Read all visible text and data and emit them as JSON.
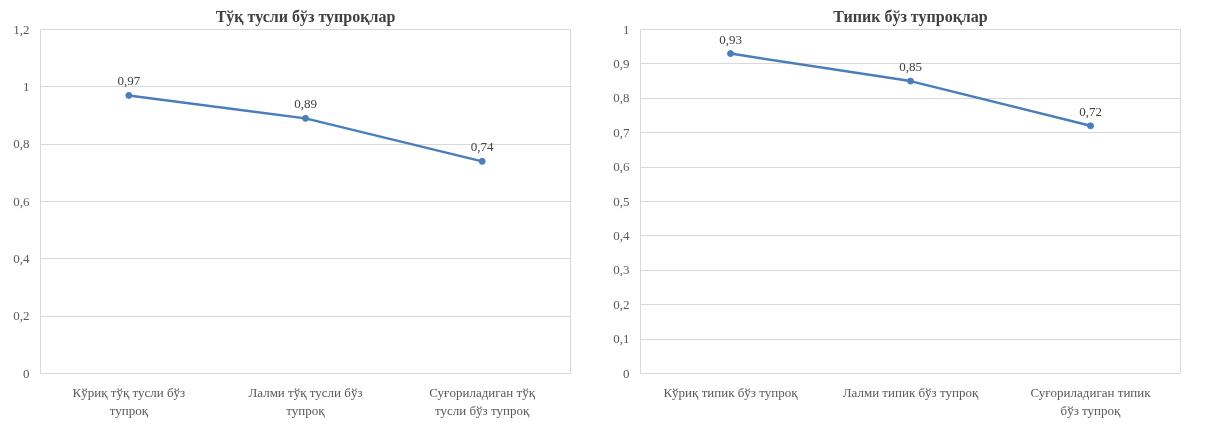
{
  "chart_data": [
    {
      "type": "line",
      "title": "Тўқ тусли бўз тупроқлар",
      "categories": [
        "Кўриқ тўқ тусли бўз тупроқ",
        "Лалми тўқ тусли бўз тупроқ",
        "Суғориладиган тўқ тусли бўз тупроқ"
      ],
      "series": [
        {
          "color": "#4a7ebb",
          "values": [
            0.97,
            0.89,
            0.74
          ],
          "value_labels": [
            "0,97",
            "0,89",
            "0,74"
          ]
        }
      ],
      "ylim": [
        0,
        1.2
      ],
      "yticks": [
        0,
        {
          "value": 0.2,
          "label": "0,2"
        },
        {
          "value": 0.4,
          "label": "0,4"
        },
        {
          "value": 0.6,
          "label": "0,6"
        },
        {
          "value": 0.8,
          "label": "0,8"
        },
        1,
        {
          "value": 1.2,
          "label": "1,2"
        }
      ],
      "grid": "y",
      "marker": "circle",
      "line_style": "solid"
    },
    {
      "type": "line",
      "title": "Типик бўз тупроқлар",
      "categories": [
        "Кўриқ типик бўз тупроқ",
        "Лалми типик бўз тупроқ",
        "Суғориладиган типик бўз тупроқ"
      ],
      "series": [
        {
          "color": "#4a7ebb",
          "values": [
            0.93,
            0.85,
            0.72
          ],
          "value_labels": [
            "0,93",
            "0,85",
            "0,72"
          ]
        }
      ],
      "ylim": [
        0,
        1
      ],
      "yticks": [
        0,
        {
          "value": 0.1,
          "label": "0,1"
        },
        {
          "value": 0.2,
          "label": "0,2"
        },
        {
          "value": 0.3,
          "label": "0,3"
        },
        {
          "value": 0.4,
          "label": "0,4"
        },
        {
          "value": 0.5,
          "label": "0,5"
        },
        {
          "value": 0.6,
          "label": "0,6"
        },
        {
          "value": 0.7,
          "label": "0,7"
        },
        {
          "value": 0.8,
          "label": "0,8"
        },
        {
          "value": 0.9,
          "label": "0,9"
        },
        1
      ],
      "grid": "y",
      "marker": "circle",
      "line_style": "solid"
    }
  ]
}
